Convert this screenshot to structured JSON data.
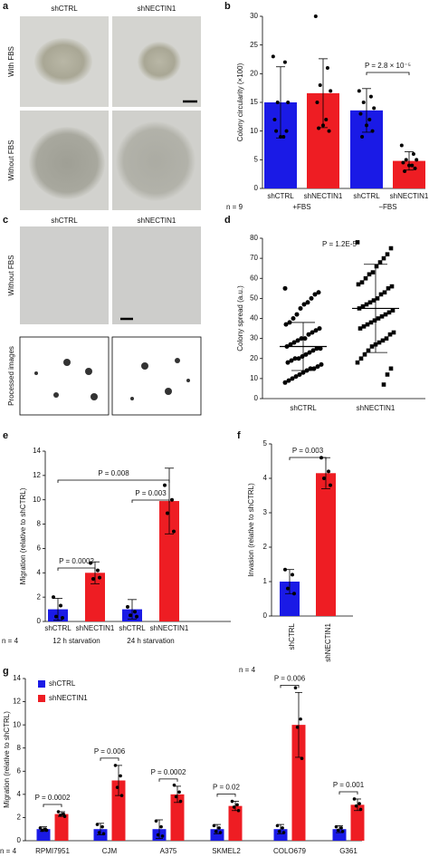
{
  "figure": {
    "panel_labels": [
      "a",
      "b",
      "c",
      "d",
      "e",
      "f",
      "g"
    ],
    "images": [
      {
        "columns": [
          "shCTRL",
          "shNECTIN1"
        ],
        "rows": [
          "With FBS",
          "Without FBS"
        ]
      },
      {
        "columns": [
          "shCTRL",
          "shNECTIN1"
        ],
        "rows": [
          "Without FBS",
          "Processed images"
        ]
      }
    ]
  },
  "chart_data": [
    {
      "type": "bar",
      "y_label": "Colony circularity (×100)",
      "categories": [
        "shCTRL",
        "shNECTIN1",
        "shCTRL",
        "shNECTIN1"
      ],
      "groups": [
        "+FBS",
        "−FBS"
      ],
      "n_label": "n = 9",
      "colors": [
        "#1a1ae6",
        "#ee1d23",
        "#1a1ae6",
        "#ee1d23"
      ],
      "values": [
        15,
        16.6,
        13.6,
        4.8
      ],
      "errors": [
        6.2,
        6,
        3.8,
        1.6
      ],
      "points": [
        [
          23,
          22,
          15,
          15,
          12,
          9,
          9,
          10,
          10
        ],
        [
          30,
          21,
          18,
          17,
          15,
          12,
          11,
          10,
          10.5
        ],
        [
          17,
          16,
          15,
          14,
          13,
          12,
          11,
          10,
          9
        ],
        [
          7.5,
          6,
          5,
          5,
          4.5,
          4,
          4,
          3.5,
          3
        ]
      ],
      "annotations": [
        "P = 2.8 × 10⁻⁵"
      ],
      "ylim": [
        0,
        30
      ],
      "yticks": [
        0,
        5,
        10,
        15,
        20,
        25,
        30
      ]
    },
    {
      "type": "strip",
      "title": "P = 1.2E-5",
      "y_label": "Colony spread (a.u.)",
      "categories": [
        "shCTRL",
        "shNECTIN1"
      ],
      "values": [
        [
          55,
          53,
          52,
          50,
          48,
          47,
          45,
          42,
          40,
          38,
          37,
          35,
          34,
          33,
          32,
          30,
          30,
          29,
          28,
          27,
          26,
          25,
          25,
          24,
          23,
          22,
          21,
          20,
          20,
          19,
          18,
          17,
          16,
          15,
          15,
          14,
          13,
          12,
          11,
          10,
          9,
          8
        ],
        [
          78,
          75,
          72,
          70,
          68,
          66,
          63,
          62,
          60,
          58,
          57,
          56,
          55,
          53,
          52,
          50,
          49,
          48,
          47,
          46,
          45,
          44,
          43,
          42,
          41,
          40,
          39,
          38,
          37,
          36,
          35,
          33,
          32,
          30,
          29,
          28,
          27,
          26,
          24,
          22,
          20,
          18,
          15,
          12,
          7
        ]
      ],
      "means": [
        26,
        45
      ],
      "errors": [
        12,
        22
      ],
      "ylim": [
        0,
        80
      ],
      "yticks": [
        0,
        10,
        20,
        30,
        40,
        50,
        60,
        70,
        80
      ]
    },
    {
      "type": "bar",
      "y_label": "Migration (relative to shCTRL)",
      "categories": [
        "shCTRL",
        "shNECTIN1",
        "shCTRL",
        "shNECTIN1"
      ],
      "groups": [
        "12 h starvation",
        "24 h starvation"
      ],
      "n_label": "n = 4",
      "colors": [
        "#1a1ae6",
        "#ee1d23",
        "#1a1ae6",
        "#ee1d23"
      ],
      "values": [
        1,
        4,
        1,
        9.9
      ],
      "errors": [
        0.9,
        0.9,
        0.8,
        2.7
      ],
      "points": [
        [
          2,
          1.3,
          0.4,
          0.3
        ],
        [
          4.8,
          4.2,
          3.5,
          3.6
        ],
        [
          1.2,
          0.8,
          0.5,
          0.4
        ],
        [
          11.2,
          10,
          8.9,
          7.4
        ]
      ],
      "annotations": [
        "P = 0.0002",
        "P = 0.008",
        "P = 0.003"
      ],
      "ylim": [
        0,
        14
      ],
      "yticks": [
        0,
        2,
        4,
        6,
        8,
        10,
        12,
        14
      ]
    },
    {
      "type": "bar",
      "y_label": "Invasion (relative to shCTRL)",
      "categories": [
        "shCTRL",
        "shNECTIN1"
      ],
      "n_label": "n = 4",
      "colors": [
        "#1a1ae6",
        "#ee1d23"
      ],
      "values": [
        1,
        4.15
      ],
      "errors": [
        0.35,
        0.45
      ],
      "points": [
        [
          1.35,
          1.2,
          0.8,
          0.65
        ],
        [
          4.6,
          4.2,
          4.0,
          3.8
        ]
      ],
      "annotations": [
        "P = 0.003"
      ],
      "ylim": [
        0,
        5
      ],
      "yticks": [
        0,
        1,
        2,
        3,
        4,
        5
      ]
    },
    {
      "type": "grouped_bar",
      "y_label": "Migration (relative to shCTRL)",
      "categories": [
        "RPMI7951",
        "CJM",
        "A375",
        "SKMEL2",
        "COLO679",
        "G361"
      ],
      "n_label": "n = 4",
      "legend": "upper left",
      "series": [
        {
          "name": "shCTRL",
          "color": "#1a1ae6",
          "values": [
            1,
            1,
            1,
            1,
            1,
            1
          ],
          "errors": [
            0.2,
            0.5,
            0.8,
            0.4,
            0.4,
            0.3
          ],
          "points": [
            [
              1.1,
              1,
              0.9,
              0.9
            ],
            [
              1.4,
              1.2,
              0.7,
              0.6
            ],
            [
              1.7,
              1.2,
              0.5,
              0.4
            ],
            [
              1.3,
              1.1,
              0.8,
              0.7
            ],
            [
              1.3,
              1.1,
              0.8,
              0.7
            ],
            [
              1.2,
              1.1,
              0.9,
              0.8
            ]
          ]
        },
        {
          "name": "shNECTIN1",
          "color": "#ee1d23",
          "values": [
            2.3,
            5.2,
            4.0,
            3.0,
            10.0,
            3.1
          ],
          "errors": [
            0.2,
            1.3,
            0.7,
            0.4,
            2.8,
            0.5
          ],
          "points": [
            [
              2.5,
              2.3,
              2.2,
              2.1
            ],
            [
              6.5,
              5.6,
              4.6,
              3.9
            ],
            [
              4.8,
              4.2,
              3.8,
              3.4
            ],
            [
              3.4,
              3.1,
              2.9,
              2.6
            ],
            [
              13.2,
              10.5,
              9.8,
              7.1
            ],
            [
              3.6,
              3.2,
              3.0,
              2.7
            ]
          ]
        }
      ],
      "annotations": [
        "P = 0.0002",
        "P = 0.006",
        "P = 0.0002",
        "P = 0.02",
        "P = 0.006",
        "P = 0.001"
      ],
      "ylim": [
        0,
        14
      ],
      "yticks": [
        0,
        2,
        4,
        6,
        8,
        10,
        12,
        14
      ]
    }
  ]
}
